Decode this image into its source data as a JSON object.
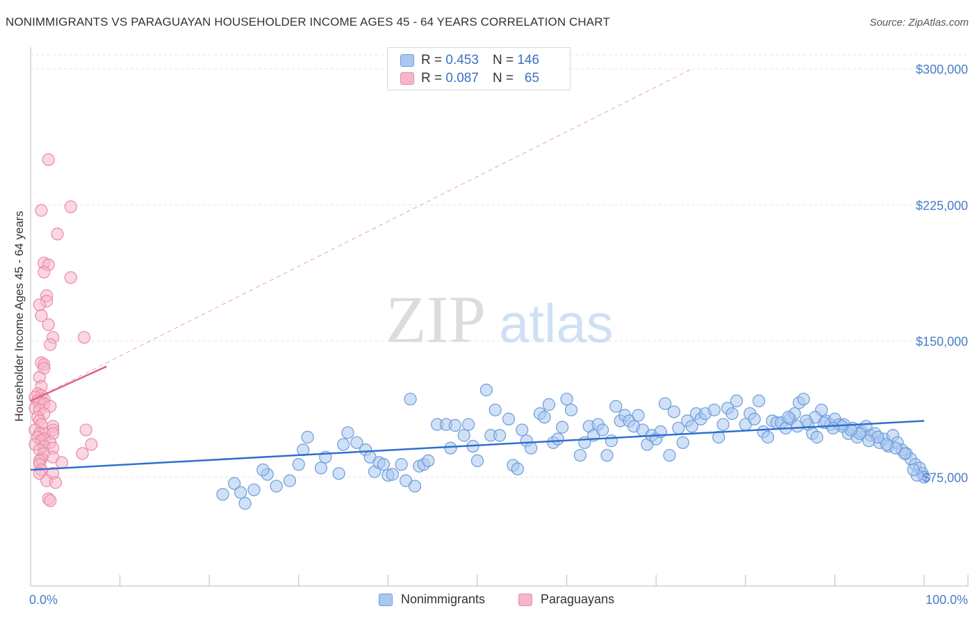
{
  "header": {
    "title": "NONIMMIGRANTS VS PARAGUAYAN HOUSEHOLDER INCOME AGES 45 - 64 YEARS CORRELATION CHART",
    "source": "Source: ZipAtlas.com"
  },
  "legend": {
    "rows": [
      {
        "r_label": "R = ",
        "r_value": "0.453",
        "n_label": "N = ",
        "n_value": "146"
      },
      {
        "r_label": "R = ",
        "r_value": "0.087",
        "n_label": "N = ",
        "n_value": "65"
      }
    ]
  },
  "bottom_legend": {
    "series1": "Nonimmigrants",
    "series2": "Paraguayans"
  },
  "watermark": {
    "zip": "ZIP",
    "atlas": "atlas"
  },
  "colors": {
    "blue_fill": "#a9c8f0",
    "blue_stroke": "#6c9ad8",
    "blue_line": "#2f6fce",
    "pink_fill": "#f5b6c8",
    "pink_stroke": "#e889a6",
    "pink_line": "#e0608a",
    "axis_text": "#4a7cc9",
    "grid": "#e3e3e3"
  },
  "chart_data": {
    "type": "scatter",
    "ylabel": "Householder Income Ages 45 - 64 years",
    "xlim": [
      0,
      100
    ],
    "ylim": [
      15000,
      315000
    ],
    "x_tick_labels": [
      "0.0%",
      "100.0%"
    ],
    "y_ticks": [
      {
        "value": 75000,
        "label": "$75,000"
      },
      {
        "value": 150000,
        "label": "$150,000"
      },
      {
        "value": 225000,
        "label": "$225,000"
      },
      {
        "value": 300000,
        "label": "$300,000"
      }
    ],
    "series": [
      {
        "name": "Nonimmigrants",
        "R": 0.453,
        "N": 146,
        "trend": {
          "x": [
            0,
            100
          ],
          "y": [
            79000,
            106000
          ]
        },
        "points": [
          [
            21.5,
            65500
          ],
          [
            24.0,
            60500
          ],
          [
            22.8,
            71500
          ],
          [
            23.5,
            66500
          ],
          [
            25.0,
            68000
          ],
          [
            26.5,
            76500
          ],
          [
            26.0,
            79000
          ],
          [
            27.5,
            70000
          ],
          [
            29.0,
            73000
          ],
          [
            30.5,
            90000
          ],
          [
            30.0,
            82000
          ],
          [
            31.0,
            97000
          ],
          [
            32.5,
            80000
          ],
          [
            33.0,
            86000
          ],
          [
            34.5,
            77000
          ],
          [
            35.0,
            93000
          ],
          [
            35.5,
            99500
          ],
          [
            36.5,
            94000
          ],
          [
            37.5,
            90000
          ],
          [
            38.0,
            86000
          ],
          [
            38.5,
            78000
          ],
          [
            39.0,
            83000
          ],
          [
            39.5,
            82000
          ],
          [
            40.0,
            76000
          ],
          [
            40.5,
            76500
          ],
          [
            41.5,
            82000
          ],
          [
            42.0,
            73000
          ],
          [
            42.5,
            118000
          ],
          [
            43.0,
            70000
          ],
          [
            43.5,
            81000
          ],
          [
            44.0,
            82000
          ],
          [
            44.5,
            84000
          ],
          [
            45.5,
            104000
          ],
          [
            46.5,
            104000
          ],
          [
            47.0,
            91000
          ],
          [
            47.5,
            103500
          ],
          [
            48.5,
            98000
          ],
          [
            49.0,
            104000
          ],
          [
            49.5,
            92000
          ],
          [
            50.0,
            84000
          ],
          [
            51.0,
            123000
          ],
          [
            51.5,
            98000
          ],
          [
            52.0,
            112000
          ],
          [
            52.5,
            98000
          ],
          [
            53.5,
            107000
          ],
          [
            54.0,
            81500
          ],
          [
            54.5,
            79500
          ],
          [
            55.0,
            101000
          ],
          [
            55.5,
            95000
          ],
          [
            56.0,
            91000
          ],
          [
            57.0,
            110000
          ],
          [
            57.5,
            108000
          ],
          [
            58.0,
            115000
          ],
          [
            58.5,
            94000
          ],
          [
            59.0,
            96000
          ],
          [
            59.5,
            102500
          ],
          [
            60.0,
            118000
          ],
          [
            60.5,
            112000
          ],
          [
            61.5,
            87000
          ],
          [
            62.0,
            94000
          ],
          [
            62.5,
            103000
          ],
          [
            63.0,
            98000
          ],
          [
            63.5,
            104000
          ],
          [
            64.0,
            101000
          ],
          [
            64.5,
            87000
          ],
          [
            65.0,
            95000
          ],
          [
            65.5,
            114000
          ],
          [
            66.0,
            106000
          ],
          [
            66.5,
            109000
          ],
          [
            67.0,
            106000
          ],
          [
            67.5,
            103000
          ],
          [
            68.0,
            109000
          ],
          [
            68.5,
            101000
          ],
          [
            69.0,
            93000
          ],
          [
            69.5,
            98000
          ],
          [
            70.0,
            96000
          ],
          [
            70.5,
            100000
          ],
          [
            71.0,
            115500
          ],
          [
            71.5,
            87000
          ],
          [
            72.0,
            111000
          ],
          [
            72.5,
            102000
          ],
          [
            73.0,
            94000
          ],
          [
            73.5,
            106000
          ],
          [
            74.0,
            103000
          ],
          [
            74.5,
            110000
          ],
          [
            75.0,
            107000
          ],
          [
            75.5,
            110000
          ],
          [
            76.5,
            112000
          ],
          [
            77.0,
            97000
          ],
          [
            77.5,
            104000
          ],
          [
            78.0,
            113000
          ],
          [
            78.5,
            110000
          ],
          [
            79.0,
            117000
          ],
          [
            80.0,
            104000
          ],
          [
            80.5,
            110000
          ],
          [
            81.0,
            107000
          ],
          [
            81.5,
            117000
          ],
          [
            82.0,
            100000
          ],
          [
            82.5,
            97000
          ],
          [
            83.0,
            106000
          ],
          [
            83.5,
            105000
          ],
          [
            84.0,
            105000
          ],
          [
            84.5,
            102000
          ],
          [
            85.0,
            107000
          ],
          [
            85.5,
            110000
          ],
          [
            86.0,
            116000
          ],
          [
            86.5,
            118000
          ],
          [
            87.0,
            104000
          ],
          [
            87.5,
            99000
          ],
          [
            88.0,
            97000
          ],
          [
            88.5,
            112000
          ],
          [
            89.0,
            106000
          ],
          [
            89.5,
            104000
          ],
          [
            90.0,
            107000
          ],
          [
            90.5,
            104000
          ],
          [
            91.0,
            104000
          ],
          [
            91.5,
            99000
          ],
          [
            92.0,
            102000
          ],
          [
            92.5,
            97000
          ],
          [
            93.0,
            100000
          ],
          [
            93.5,
            103000
          ],
          [
            94.0,
            98000
          ],
          [
            94.5,
            99000
          ],
          [
            95.0,
            94000
          ],
          [
            95.5,
            96000
          ],
          [
            96.0,
            92000
          ],
          [
            96.5,
            98000
          ],
          [
            97.0,
            94000
          ],
          [
            97.5,
            90000
          ],
          [
            98.0,
            88000
          ],
          [
            98.5,
            85000
          ],
          [
            99.0,
            82000
          ],
          [
            99.5,
            80000
          ],
          [
            99.8,
            77000
          ],
          [
            100.0,
            75000
          ],
          [
            99.2,
            76000
          ],
          [
            98.8,
            79000
          ],
          [
            97.8,
            88000
          ],
          [
            96.8,
            91000
          ],
          [
            95.8,
            93000
          ],
          [
            94.8,
            97000
          ],
          [
            93.8,
            95000
          ],
          [
            92.8,
            99000
          ],
          [
            91.8,
            101000
          ],
          [
            90.8,
            103000
          ],
          [
            89.8,
            102000
          ],
          [
            88.8,
            105000
          ],
          [
            87.8,
            108000
          ],
          [
            86.8,
            106000
          ],
          [
            85.8,
            103000
          ],
          [
            84.8,
            108000
          ]
        ]
      },
      {
        "name": "Paraguayans",
        "R": 0.087,
        "N": 65,
        "trend": {
          "x": [
            0,
            8.5
          ],
          "y": [
            117000,
            136000
          ],
          "x_ext": [
            0,
            74
          ],
          "y_ext": [
            117000,
            300000
          ]
        },
        "points": [
          [
            2.0,
            250000
          ],
          [
            1.2,
            222000
          ],
          [
            4.5,
            224000
          ],
          [
            3.0,
            209000
          ],
          [
            1.5,
            193000
          ],
          [
            2.0,
            192000
          ],
          [
            1.5,
            188000
          ],
          [
            4.5,
            185000
          ],
          [
            1.8,
            175000
          ],
          [
            1.8,
            172000
          ],
          [
            1.0,
            170000
          ],
          [
            1.2,
            164000
          ],
          [
            2.0,
            159000
          ],
          [
            6.0,
            152000
          ],
          [
            2.5,
            152000
          ],
          [
            2.2,
            148000
          ],
          [
            1.2,
            138000
          ],
          [
            1.5,
            137000
          ],
          [
            1.5,
            135000
          ],
          [
            1.0,
            130000
          ],
          [
            1.2,
            125000
          ],
          [
            0.8,
            121000
          ],
          [
            1.2,
            120000
          ],
          [
            0.5,
            119000
          ],
          [
            1.5,
            118000
          ],
          [
            0.8,
            117000
          ],
          [
            1.0,
            116000
          ],
          [
            1.5,
            115500
          ],
          [
            2.2,
            114000
          ],
          [
            0.5,
            113000
          ],
          [
            1.0,
            112000
          ],
          [
            1.5,
            110000
          ],
          [
            0.8,
            108000
          ],
          [
            1.0,
            106000
          ],
          [
            1.2,
            104000
          ],
          [
            2.5,
            103000
          ],
          [
            2.5,
            101000
          ],
          [
            6.2,
            101000
          ],
          [
            0.5,
            101000
          ],
          [
            1.5,
            99000
          ],
          [
            1.0,
            99000
          ],
          [
            2.5,
            99000
          ],
          [
            0.8,
            97000
          ],
          [
            1.5,
            96000
          ],
          [
            1.2,
            95000
          ],
          [
            2.2,
            94000
          ],
          [
            6.8,
            93000
          ],
          [
            0.5,
            93000
          ],
          [
            1.5,
            92000
          ],
          [
            2.5,
            91000
          ],
          [
            1.0,
            90000
          ],
          [
            1.5,
            88000
          ],
          [
            5.8,
            88000
          ],
          [
            2.5,
            86000
          ],
          [
            1.2,
            85000
          ],
          [
            1.0,
            84000
          ],
          [
            3.5,
            83000
          ],
          [
            1.0,
            82000
          ],
          [
            1.2,
            79000
          ],
          [
            2.5,
            77000
          ],
          [
            1.0,
            77000
          ],
          [
            1.8,
            73000
          ],
          [
            2.8,
            72000
          ],
          [
            2.0,
            63000
          ],
          [
            2.2,
            62000
          ]
        ]
      }
    ]
  }
}
